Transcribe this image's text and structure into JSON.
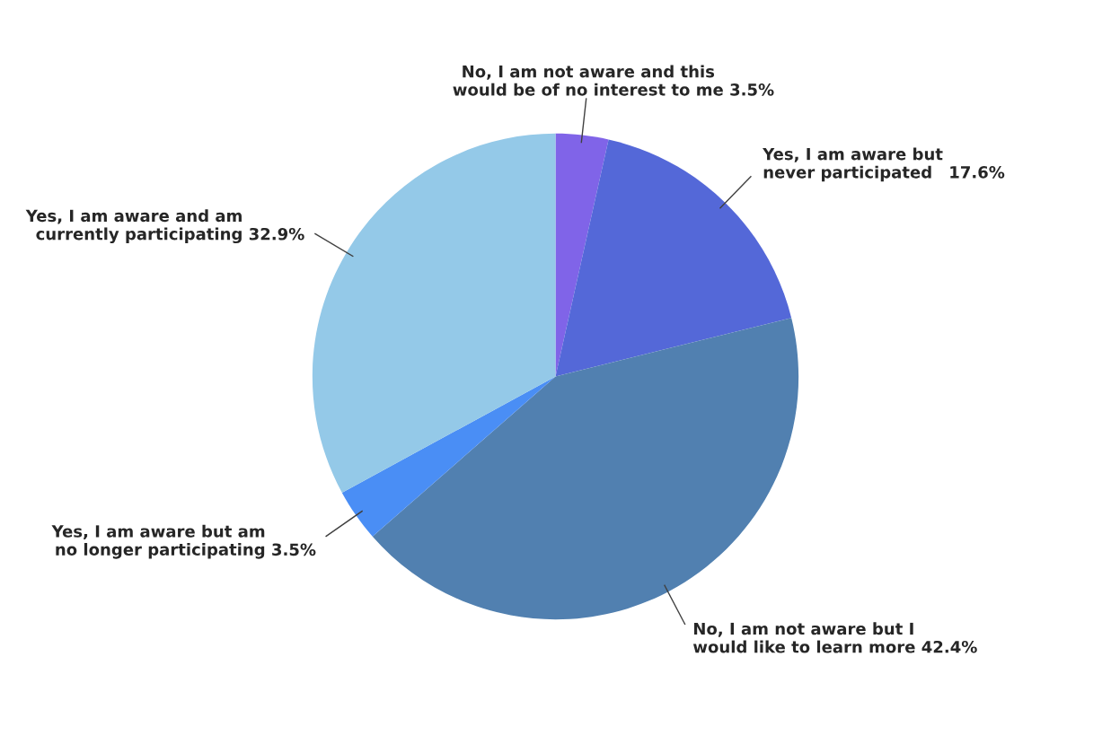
{
  "chart_data": {
    "type": "pie",
    "categories": [
      "No, I am not aware and this\nwould be of no interest to me",
      "Yes, I am aware but\nnever participated",
      "No, I am not aware but I\nwould like to learn more",
      "Yes, I am aware but am\nno longer participating",
      "Yes, I am aware and am\ncurrently participating"
    ],
    "values": [
      3.5,
      17.6,
      42.4,
      3.5,
      32.9
    ],
    "value_labels": [
      "3.5%",
      "17.6%",
      "42.4%",
      "3.5%",
      "32.9%"
    ],
    "colors": [
      "#8064e8",
      "#5468d8",
      "#5180b0",
      "#4a8ef5",
      "#94c9e8"
    ],
    "legend": false
  }
}
